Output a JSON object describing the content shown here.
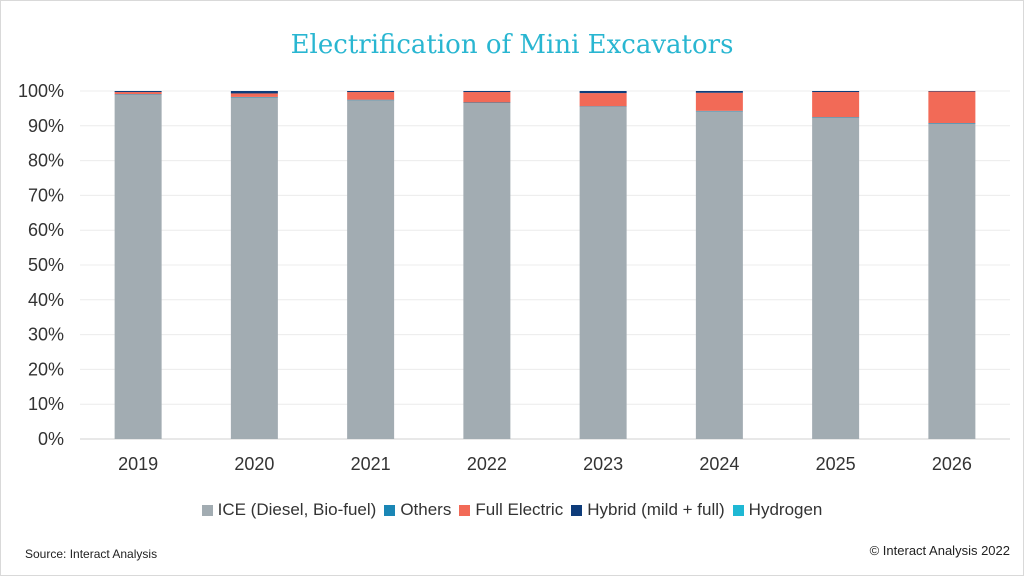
{
  "chart_data": {
    "type": "bar",
    "stacked": true,
    "title": "Electrification of Mini Excavators",
    "categories": [
      "2019",
      "2020",
      "2021",
      "2022",
      "2023",
      "2024",
      "2025",
      "2026"
    ],
    "ylim": [
      0,
      100
    ],
    "yticks": [
      "0%",
      "10%",
      "20%",
      "30%",
      "40%",
      "50%",
      "60%",
      "70%",
      "80%",
      "90%",
      "100%"
    ],
    "grid": true,
    "legend_position": "bottom",
    "series": [
      {
        "name": "ICE (Diesel, Bio-fuel)",
        "color": "#a2acb2",
        "values": [
          99.0,
          98.2,
          97.4,
          96.6,
          95.5,
          94.2,
          92.4,
          90.7
        ]
      },
      {
        "name": "Others",
        "color": "#1a86b5",
        "values": [
          0.1,
          0.1,
          0.1,
          0.1,
          0.1,
          0.1,
          0.1,
          0.1
        ]
      },
      {
        "name": "Full Electric",
        "color": "#f26a57",
        "values": [
          0.6,
          1.0,
          2.2,
          3.0,
          3.8,
          5.2,
          7.2,
          9.1
        ]
      },
      {
        "name": "Hybrid (mild + full)",
        "color": "#0e3c7a",
        "values": [
          0.3,
          0.7,
          0.3,
          0.3,
          0.6,
          0.5,
          0.3,
          0.1
        ]
      },
      {
        "name": "Hydrogen",
        "color": "#1fb8d4",
        "values": [
          0,
          0,
          0,
          0,
          0,
          0,
          0,
          0
        ]
      }
    ]
  },
  "source": "Source: Interact Analysis",
  "copyright": "© Interact Analysis 2022"
}
